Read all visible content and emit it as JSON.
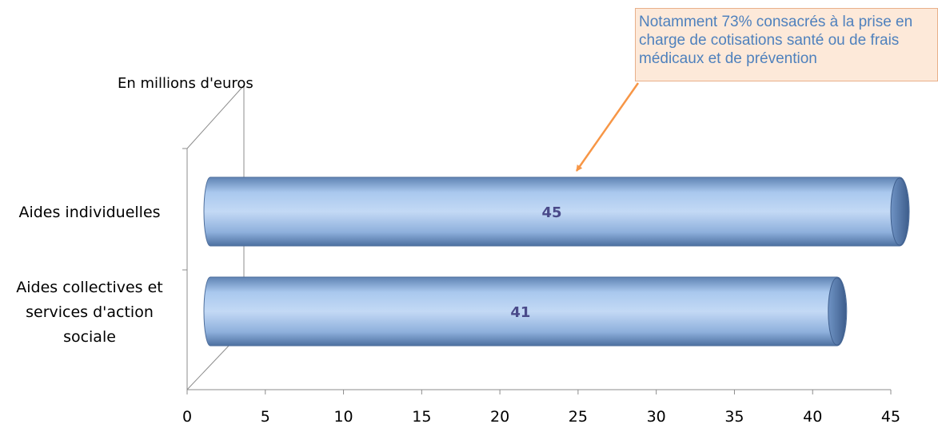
{
  "chart_data": {
    "type": "bar",
    "orientation": "horizontal",
    "unit_label": "En millions d'euros",
    "categories": [
      "Aides individuelles",
      "Aides collectives et services d'action sociale"
    ],
    "category_lines": [
      [
        "Aides individuelles"
      ],
      [
        "Aides collectives et",
        "services d'action",
        "sociale"
      ]
    ],
    "values": [
      45,
      41
    ],
    "data_labels": [
      "45",
      "41"
    ],
    "xlim": [
      0,
      45
    ],
    "x_ticks": [
      "0",
      "5",
      "10",
      "15",
      "20",
      "25",
      "30",
      "35",
      "40",
      "45"
    ],
    "grid": false,
    "bar_style": "3d-cylinder",
    "bar_color": "#8fb4e3",
    "annotation": {
      "text": "Notamment  73% consacrés à la prise en\ncharge de cotisations santé ou de frais\nmédicaux et de prévention",
      "points_to": "Aides individuelles",
      "background": "#fde9d9",
      "text_color": "#4f81bd",
      "arrow_color": "#f79646"
    }
  }
}
